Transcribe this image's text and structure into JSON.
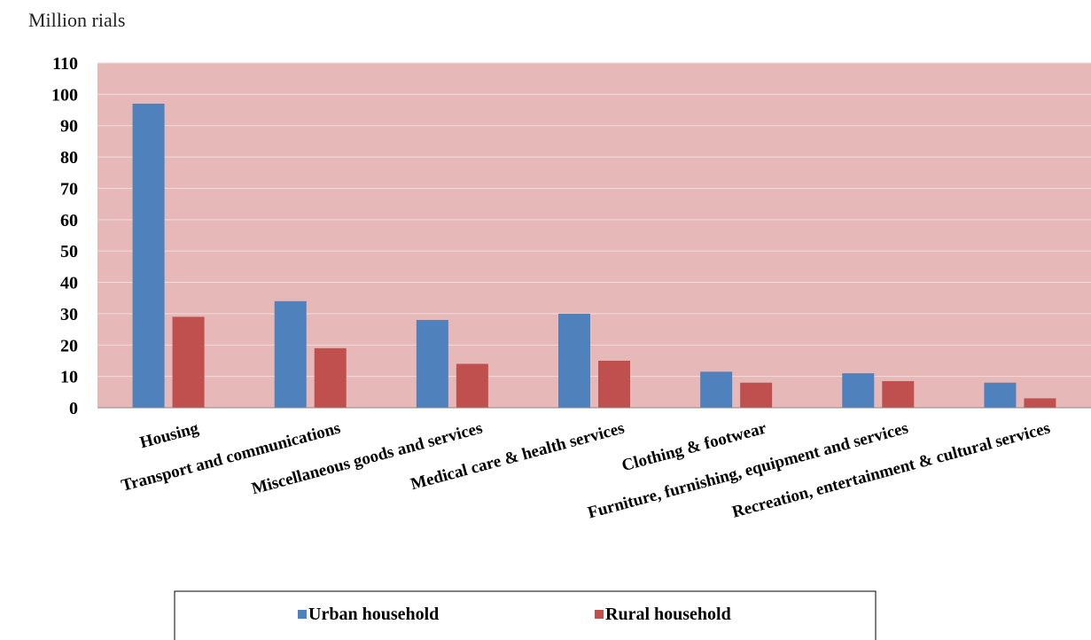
{
  "chart_data": {
    "type": "bar",
    "unit_label": "Million rials",
    "categories": [
      "Housing",
      "Transport and communications",
      "Miscellaneous goods and services",
      "Medical care & health services",
      "Clothing & footwear",
      "Furniture, furnishing, equipment and services",
      "Recreation, entertainment & cultural services"
    ],
    "series": [
      {
        "name": "Urban household",
        "color": "#4f81bd",
        "values": [
          97,
          34,
          28,
          30,
          11.5,
          11,
          8
        ]
      },
      {
        "name": "Rural household",
        "color": "#c0504d",
        "values": [
          29,
          19,
          14,
          15,
          8,
          8.5,
          3
        ]
      }
    ],
    "ylim": [
      0,
      110
    ],
    "yticks": [
      0,
      10,
      20,
      30,
      40,
      50,
      60,
      70,
      80,
      90,
      100,
      110
    ],
    "plot_background": "#e6b8b7",
    "grid": true,
    "legend_position": "bottom"
  }
}
